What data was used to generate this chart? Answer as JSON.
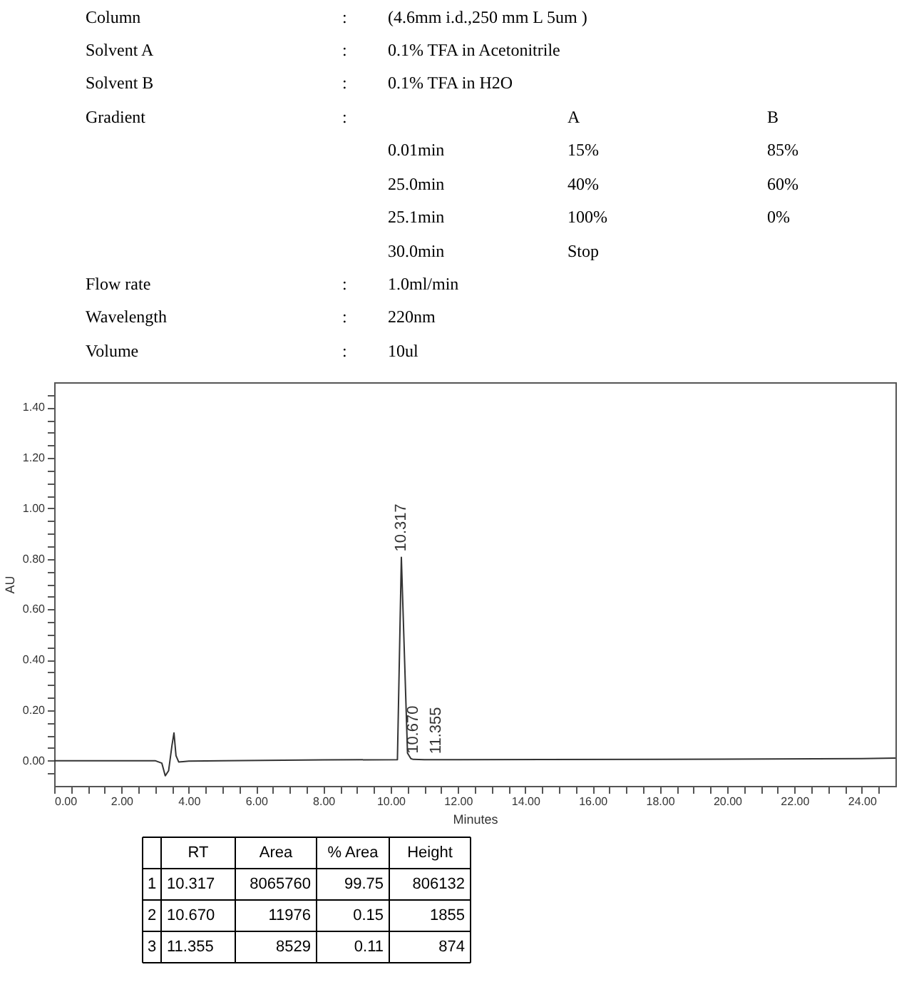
{
  "chart_data": {
    "type": "line",
    "xlabel": "Minutes",
    "ylabel": "AU",
    "xlim": [
      0,
      25
    ],
    "ylim": [
      -0.1,
      1.5
    ],
    "xticks": [
      {
        "value": 0,
        "label": "0.00"
      },
      {
        "value": 0.5,
        "label": null
      },
      {
        "value": 1,
        "label": null
      },
      {
        "value": 1.5,
        "label": null
      },
      {
        "value": 2,
        "label": "2.00"
      },
      {
        "value": 2.5,
        "label": null
      },
      {
        "value": 3,
        "label": null
      },
      {
        "value": 3.5,
        "label": null
      },
      {
        "value": 4,
        "label": "4.00"
      },
      {
        "value": 4.5,
        "label": null
      },
      {
        "value": 5,
        "label": null
      },
      {
        "value": 5.5,
        "label": null
      },
      {
        "value": 6,
        "label": "6.00"
      },
      {
        "value": 6.5,
        "label": null
      },
      {
        "value": 7,
        "label": null
      },
      {
        "value": 7.5,
        "label": null
      },
      {
        "value": 8,
        "label": "8.00"
      },
      {
        "value": 8.5,
        "label": null
      },
      {
        "value": 9,
        "label": null
      },
      {
        "value": 9.5,
        "label": null
      },
      {
        "value": 10,
        "label": "10.00"
      },
      {
        "value": 10.5,
        "label": null
      },
      {
        "value": 11,
        "label": null
      },
      {
        "value": 11.5,
        "label": null
      },
      {
        "value": 12,
        "label": "12.00"
      },
      {
        "value": 12.5,
        "label": null
      },
      {
        "value": 13,
        "label": null
      },
      {
        "value": 13.5,
        "label": null
      },
      {
        "value": 14,
        "label": "14.00"
      },
      {
        "value": 14.5,
        "label": null
      },
      {
        "value": 15,
        "label": null
      },
      {
        "value": 15.5,
        "label": null
      },
      {
        "value": 16,
        "label": "16.00"
      },
      {
        "value": 16.5,
        "label": null
      },
      {
        "value": 17,
        "label": null
      },
      {
        "value": 17.5,
        "label": null
      },
      {
        "value": 18,
        "label": "18.00"
      },
      {
        "value": 18.5,
        "label": null
      },
      {
        "value": 19,
        "label": null
      },
      {
        "value": 19.5,
        "label": null
      },
      {
        "value": 20,
        "label": "20.00"
      },
      {
        "value": 20.5,
        "label": null
      },
      {
        "value": 21,
        "label": null
      },
      {
        "value": 21.5,
        "label": null
      },
      {
        "value": 22,
        "label": "22.00"
      },
      {
        "value": 22.5,
        "label": null
      },
      {
        "value": 23,
        "label": null
      },
      {
        "value": 23.5,
        "label": null
      },
      {
        "value": 24,
        "label": "24.00"
      },
      {
        "value": 24.5,
        "label": null
      }
    ],
    "yticks": [
      {
        "value": -0.05,
        "label": null
      },
      {
        "value": 0,
        "label": "0.00"
      },
      {
        "value": 0.05,
        "label": null
      },
      {
        "value": 0.1,
        "label": null
      },
      {
        "value": 0.15,
        "label": null
      },
      {
        "value": 0.2,
        "label": "0.20"
      },
      {
        "value": 0.25,
        "label": null
      },
      {
        "value": 0.3,
        "label": null
      },
      {
        "value": 0.35,
        "label": null
      },
      {
        "value": 0.4,
        "label": "0.40"
      },
      {
        "value": 0.45,
        "label": null
      },
      {
        "value": 0.5,
        "label": null
      },
      {
        "value": 0.55,
        "label": null
      },
      {
        "value": 0.6,
        "label": "0.60"
      },
      {
        "value": 0.65,
        "label": null
      },
      {
        "value": 0.7,
        "label": null
      },
      {
        "value": 0.75,
        "label": null
      },
      {
        "value": 0.8,
        "label": "0.80"
      },
      {
        "value": 0.85,
        "label": null
      },
      {
        "value": 0.9,
        "label": null
      },
      {
        "value": 0.95,
        "label": null
      },
      {
        "value": 1.0,
        "label": "1.00"
      },
      {
        "value": 1.05,
        "label": null
      },
      {
        "value": 1.1,
        "label": null
      },
      {
        "value": 1.15,
        "label": null
      },
      {
        "value": 1.2,
        "label": "1.20"
      },
      {
        "value": 1.25,
        "label": null
      },
      {
        "value": 1.3,
        "label": null
      },
      {
        "value": 1.35,
        "label": null
      },
      {
        "value": 1.4,
        "label": "1.40"
      },
      {
        "value": 1.45,
        "label": null
      }
    ],
    "grid": false,
    "marker": "none",
    "line_style": "solid",
    "series": [
      {
        "color": "#333333",
        "x": [
          0,
          1,
          2,
          3.0,
          3.2,
          3.3,
          3.4,
          3.5,
          3.56,
          3.62,
          3.7,
          4.0,
          5,
          8,
          10.2,
          10.317,
          10.5,
          10.6,
          10.67,
          11.0,
          11.355,
          12,
          18,
          24,
          25
        ],
        "values": [
          0,
          0,
          0,
          0,
          -0.01,
          -0.06,
          -0.04,
          0.06,
          0.11,
          0.02,
          -0.005,
          -0.002,
          0,
          0.003,
          0.004,
          0.806,
          0.03,
          0.008,
          0.005,
          0.004,
          0.004,
          0.004,
          0.005,
          0.008,
          0.01
        ]
      }
    ],
    "annotations": [
      "Column\t:\t(4.6mm i.d.,250 mm L 5um )",
      "Solvent A\t:\t0.1% TFA in Acetonitrile",
      "Solvent B\t:\t0.1% TFA in H2O",
      "Gradient\t:\t\tA\tB",
      "\t\t0.01min\t15%\t85%",
      "\t\t25.0min\t40%\t60%",
      "\t\t25.1min\t100%\t0%",
      "\t\t30.0min\tStop",
      "Flow rate\t:\t1.0ml/min",
      "Wavelength\t:\t220nm",
      "Volume\t:\t10ul",
      "\tRT\tArea\t% Area\tHeight",
      "1\t10.317\t8065760\t99.75\t806132",
      "2\t10.670\t11976\t0.15\t1855",
      "3\t11.355\t8529\t0.11\t874",
      {
        "text": "10.317",
        "x": 10.317,
        "y": 0.806
      },
      {
        "text": "10.670",
        "x": 10.67,
        "y": 0.005
      },
      {
        "text": "11.355",
        "x": 11.355,
        "y": 0.004
      }
    ]
  }
}
